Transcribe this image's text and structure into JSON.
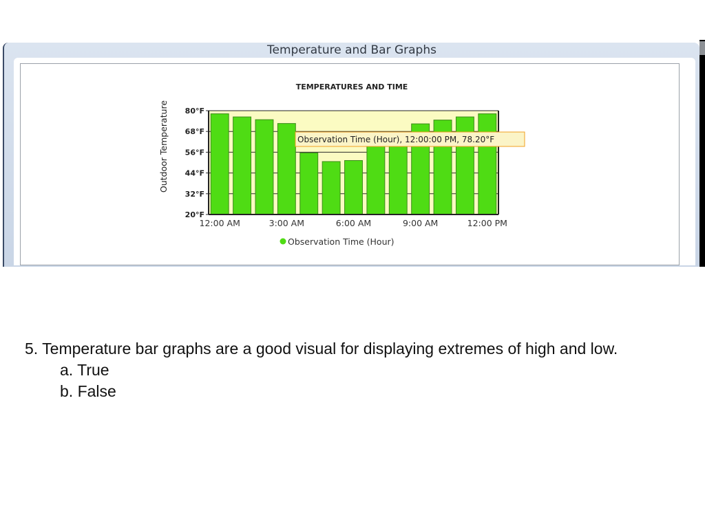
{
  "window": {
    "title": "Temperature and Bar Graphs"
  },
  "chart_data": {
    "type": "bar",
    "title": "TEMPERATURES AND TIME",
    "ylabel": "Outdoor Temperature",
    "xlabel": "",
    "categories": [
      "12:00 AM",
      "1:00 AM",
      "2:00 AM",
      "3:00 AM",
      "4:00 AM",
      "5:00 AM",
      "6:00 AM",
      "7:00 AM",
      "8:00 AM",
      "9:00 AM",
      "10:00 AM",
      "11:00 AM",
      "12:00 PM"
    ],
    "x_tick_labels": [
      "12:00 AM",
      "3:00 AM",
      "6:00 AM",
      "9:00 AM",
      "12:00 PM"
    ],
    "y_tick_labels": [
      "20°F",
      "32°F",
      "44°F",
      "56°F",
      "68°F",
      "80°F"
    ],
    "y_ticks": [
      20,
      32,
      44,
      56,
      68,
      80
    ],
    "ylim": [
      20,
      80
    ],
    "series": [
      {
        "name": "Observation Time (Hour)",
        "values": [
          78.2,
          76.4,
          74.8,
          72.6,
          55.6,
          50.6,
          51.2,
          61.6,
          67.6,
          72.4,
          74.6,
          76.4,
          78.2
        ]
      }
    ],
    "legend": {
      "position": "bottom",
      "label": "Observation Time (Hour)"
    },
    "tooltip": "Observation Time (Hour), 12:00:00 PM, 78.20°F",
    "colors": {
      "bar": "#4fdc14",
      "bar_stroke": "#3e8a1c",
      "plot_bg": "#fbfbc2",
      "grid": "#2a2a2a",
      "tooltip_bg": "#fbf4c7",
      "tooltip_border": "#f0a020",
      "legend_marker": "#4fdc14"
    },
    "grid": true
  },
  "question": {
    "text": "5. Temperature bar graphs are a good visual for displaying extremes of high and low.",
    "options": [
      "a. True",
      "b. False"
    ]
  }
}
